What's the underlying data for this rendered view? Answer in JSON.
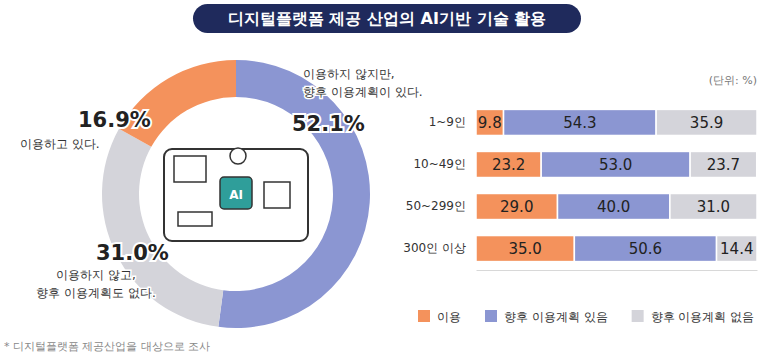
{
  "title": "디지털플랫폼 제공 산업의 AI기반 기술 활용",
  "note": "* 디지털플랫폼 제공산업을 대상으로 조사",
  "chart_data": [
    {
      "type": "pie",
      "categories": [
        "이용하지 않지만,\n향후 이용계획이 있다.",
        "이용하지 않고,\n향후 이용계획도 없다.",
        "이용하고 있다."
      ],
      "values": [
        52.1,
        31.0,
        16.9
      ],
      "value_labels": [
        "52.1%",
        "31.0%",
        "16.9%"
      ],
      "colors": [
        "#8b96d2",
        "#d4d4da",
        "#f4925c"
      ],
      "data_labels": true,
      "center_label": "AI"
    },
    {
      "type": "bar",
      "orientation": "horizontal",
      "stacked": true,
      "data_labels": true,
      "tick_labels": "y",
      "legend": "bottom",
      "unit_label": "(단위: %)",
      "categories": [
        "1~9인",
        "10~49인",
        "50~299인",
        "300인 이상"
      ],
      "xlim": [
        0,
        100
      ],
      "series": [
        {
          "name": "이용",
          "color": "#f4925c",
          "values": [
            9.8,
            23.2,
            29.0,
            35.0
          ],
          "value_labels": [
            "9.8",
            "23.2",
            "29.0",
            "35.0"
          ]
        },
        {
          "name": "향후 이용계획 있음",
          "color": "#8b96d2",
          "values": [
            54.3,
            53.0,
            40.0,
            50.6
          ],
          "value_labels": [
            "54.3",
            "53.0",
            "40.0",
            "50.6"
          ]
        },
        {
          "name": "향후 이용계획 없음",
          "color": "#d4d4da",
          "values": [
            35.9,
            23.7,
            31.0,
            14.4
          ],
          "value_labels": [
            "35.9",
            "23.7",
            "31.0",
            "14.4"
          ]
        }
      ]
    }
  ]
}
